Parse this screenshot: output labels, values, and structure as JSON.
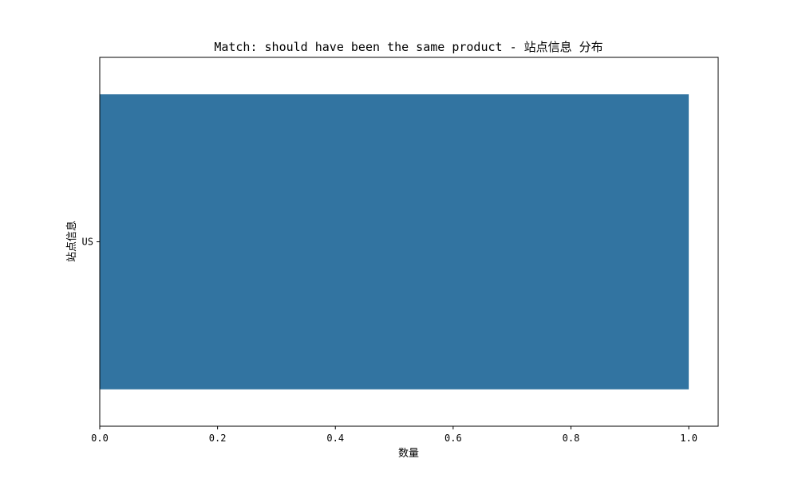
{
  "chart_data": {
    "type": "bar",
    "orientation": "horizontal",
    "title": "Match: should have been the same product - 站点信息 分布",
    "xlabel": "数量",
    "ylabel": "站点信息",
    "categories": [
      "US"
    ],
    "values": [
      1.0
    ],
    "xlim": [
      0,
      1.05
    ],
    "xticks": [
      "0.0",
      "0.2",
      "0.4",
      "0.6",
      "0.8",
      "1.0"
    ],
    "grid": false,
    "legend": "none",
    "bar_color": "#3274a1"
  }
}
